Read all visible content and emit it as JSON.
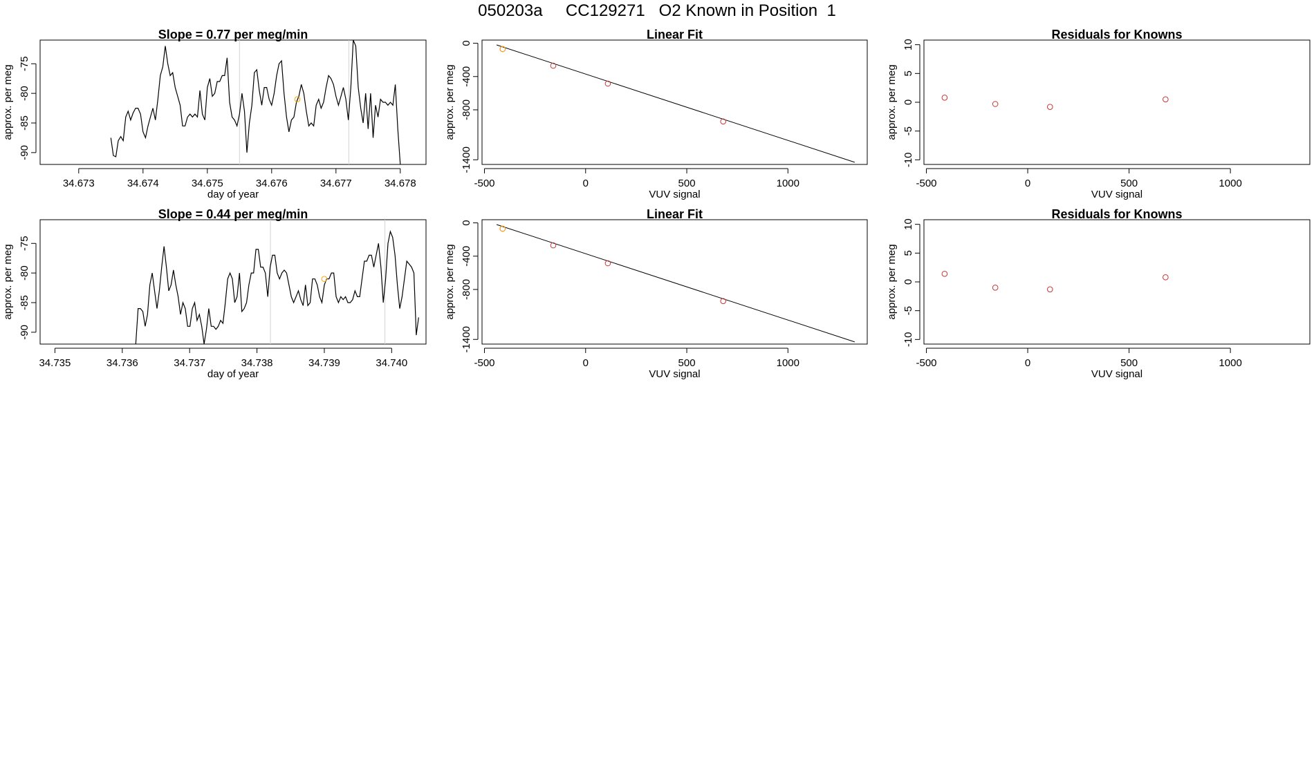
{
  "page": {
    "title": "050203a     CC129271   O2 Known in Position  1"
  },
  "colors": {
    "line": "#000000",
    "points": "#cd3333",
    "highlight": "#ffa500",
    "vlines": "#d3d3d3"
  },
  "chart_data": [
    {
      "type": "line",
      "title": "Slope =  0.77  per meg/min",
      "xlabel": "day of year",
      "ylabel": "approx. per meg",
      "xlim": [
        34.6724,
        34.6784
      ],
      "ylim": [
        -92,
        -71
      ],
      "xticks": [
        34.673,
        34.674,
        34.675,
        34.676,
        34.677,
        34.678
      ],
      "xtick_labels": [
        "34.673",
        "34.674",
        "34.675",
        "34.676",
        "34.677",
        "34.678"
      ],
      "yticks": [
        -90,
        -85,
        -80,
        -75
      ],
      "ytick_labels": [
        "-90",
        "-85",
        "-80",
        "-75"
      ],
      "vlines": [
        34.6755,
        34.6772
      ],
      "highlight_point": {
        "x": 34.6764,
        "y": -81
      },
      "x_start": 34.6735,
      "x_end": 34.678,
      "y": [
        -87.5,
        -90.5,
        -90.7,
        -88,
        -87.3,
        -88,
        -84,
        -83,
        -84.5,
        -83.3,
        -82.5,
        -82.5,
        -83.5,
        -86.5,
        -87.5,
        -85.5,
        -84,
        -82.5,
        -84.5,
        -81,
        -77,
        -75.5,
        -72,
        -75,
        -77,
        -76.5,
        -79,
        -80.5,
        -82,
        -85.5,
        -85.5,
        -84,
        -83.5,
        -84,
        -83.5,
        -84,
        -79.5,
        -83.5,
        -84.5,
        -79,
        -77.5,
        -80.5,
        -80,
        -78,
        -78,
        -77,
        -77,
        -74,
        -81.5,
        -84,
        -84.5,
        -85.5,
        -83.5,
        -80,
        -83,
        -90,
        -85,
        -82,
        -76.5,
        -76,
        -79.5,
        -82,
        -79,
        -79,
        -81,
        -82,
        -80,
        -77,
        -75,
        -74.5,
        -80,
        -84,
        -86.5,
        -84.5,
        -84,
        -81.5,
        -80.5,
        -78.5,
        -80,
        -83,
        -85.5,
        -85,
        -85.5,
        -82,
        -81,
        -82.5,
        -81.5,
        -79,
        -77,
        -77.5,
        -78.5,
        -80.5,
        -82,
        -80.5,
        -79,
        -81,
        -84.5,
        -79,
        -71,
        -72,
        -79,
        -82.5,
        -85,
        -80,
        -86,
        -80,
        -87.5,
        -82,
        -84,
        -81,
        -81.5,
        -81.5,
        -82,
        -81.5,
        -82,
        -78.5,
        -86,
        -92
      ]
    },
    {
      "type": "scatter",
      "title": "Linear Fit",
      "xlabel": "VUV signal",
      "ylabel": "approx. per meg",
      "xlim": [
        -512,
        1392
      ],
      "ylim": [
        -1456,
        38
      ],
      "xticks": [
        -500,
        0,
        500,
        1000
      ],
      "xtick_labels": [
        "-500",
        "0",
        "500",
        "1000"
      ],
      "yticks": [
        0,
        -400,
        -800,
        -1400
      ],
      "ytick_labels": [
        "0",
        "-400",
        "-800",
        "-1400"
      ],
      "fit_line": {
        "x": [
          -440,
          1330
        ],
        "y": [
          -20,
          -1430
        ]
      },
      "points": [
        {
          "x": -410,
          "y": -70,
          "highlight": true
        },
        {
          "x": -160,
          "y": -270,
          "highlight": false
        },
        {
          "x": 110,
          "y": -485,
          "highlight": false
        },
        {
          "x": 680,
          "y": -940,
          "highlight": false
        }
      ]
    },
    {
      "type": "scatter",
      "title": "Residuals for Knowns",
      "xlabel": "VUV signal",
      "ylabel": "approx. per meg",
      "xlim": [
        -512,
        1392
      ],
      "ylim": [
        -10.8,
        10.8
      ],
      "xticks": [
        -500,
        0,
        500,
        1000
      ],
      "xtick_labels": [
        "-500",
        "0",
        "500",
        "1000"
      ],
      "yticks": [
        -10,
        -5,
        0,
        5,
        10
      ],
      "ytick_labels": [
        "-10",
        "-5",
        "0",
        "5",
        "10"
      ],
      "points": [
        {
          "x": -410,
          "y": 0.8
        },
        {
          "x": -160,
          "y": -0.3
        },
        {
          "x": 110,
          "y": -0.8
        },
        {
          "x": 680,
          "y": 0.5
        }
      ]
    },
    {
      "type": "line",
      "title": "Slope =  0.44  per meg/min",
      "xlabel": "day of year",
      "ylabel": "approx. per meg",
      "xlim": [
        34.73478,
        34.74051
      ],
      "ylim": [
        -92,
        -71
      ],
      "xticks": [
        34.735,
        34.736,
        34.737,
        34.738,
        34.739,
        34.74
      ],
      "xtick_labels": [
        "34.735",
        "34.736",
        "34.737",
        "34.738",
        "34.739",
        "34.740"
      ],
      "yticks": [
        -90,
        -85,
        -80,
        -75
      ],
      "ytick_labels": [
        "-90",
        "-85",
        "-80",
        "-75"
      ],
      "vlines": [
        34.7382,
        34.7399
      ],
      "highlight_point": {
        "x": 34.739,
        "y": -81
      },
      "x_start": 34.7362,
      "x_end": 34.7404,
      "y": [
        -92,
        -86,
        -86,
        -86.5,
        -89,
        -87,
        -82,
        -80,
        -83,
        -86,
        -83,
        -79,
        -75.5,
        -79,
        -83,
        -82,
        -79.5,
        -82,
        -84,
        -87,
        -85,
        -86,
        -89,
        -89,
        -86,
        -85,
        -88,
        -87,
        -89,
        -92,
        -89.5,
        -86,
        -89,
        -89,
        -89.5,
        -89,
        -88,
        -88.5,
        -85,
        -81,
        -80,
        -81,
        -85,
        -84,
        -80,
        -86.5,
        -86,
        -85,
        -82,
        -80,
        -80,
        -76,
        -76,
        -79,
        -79,
        -80,
        -84,
        -79,
        -77,
        -77,
        -80,
        -81,
        -80,
        -79.5,
        -80,
        -82,
        -84,
        -85,
        -84,
        -83,
        -84.5,
        -85.5,
        -82,
        -85.5,
        -85,
        -81,
        -81,
        -82,
        -84,
        -85,
        -82,
        -81,
        -81,
        -80,
        -80,
        -84,
        -85,
        -84,
        -84.5,
        -84,
        -85,
        -85,
        -84.5,
        -83,
        -84,
        -84,
        -81,
        -78,
        -78,
        -77,
        -77,
        -79,
        -77,
        -75,
        -79,
        -85,
        -81,
        -75,
        -73,
        -74,
        -77,
        -82,
        -86,
        -84,
        -81,
        -78,
        -78.5,
        -79,
        -80,
        -90.5,
        -87.5
      ]
    },
    {
      "type": "scatter",
      "title": "Linear Fit",
      "xlabel": "VUV signal",
      "ylabel": "approx. per meg",
      "xlim": [
        -512,
        1392
      ],
      "ylim": [
        -1456,
        38
      ],
      "xticks": [
        -500,
        0,
        500,
        1000
      ],
      "xtick_labels": [
        "-500",
        "0",
        "500",
        "1000"
      ],
      "yticks": [
        0,
        -400,
        -800,
        -1400
      ],
      "ytick_labels": [
        "0",
        "-400",
        "-800",
        "-1400"
      ],
      "fit_line": {
        "x": [
          -440,
          1330
        ],
        "y": [
          -20,
          -1430
        ]
      },
      "points": [
        {
          "x": -410,
          "y": -70,
          "highlight": true
        },
        {
          "x": -160,
          "y": -270,
          "highlight": false
        },
        {
          "x": 110,
          "y": -485,
          "highlight": false
        },
        {
          "x": 680,
          "y": -940,
          "highlight": false
        }
      ]
    },
    {
      "type": "scatter",
      "title": "Residuals for Knowns",
      "xlabel": "VUV signal",
      "ylabel": "approx. per meg",
      "xlim": [
        -512,
        1392
      ],
      "ylim": [
        -10.8,
        10.8
      ],
      "xticks": [
        -500,
        0,
        500,
        1000
      ],
      "xtick_labels": [
        "-500",
        "0",
        "500",
        "1000"
      ],
      "yticks": [
        -10,
        -5,
        0,
        5,
        10
      ],
      "ytick_labels": [
        "-10",
        "-5",
        "0",
        "5",
        "10"
      ],
      "points": [
        {
          "x": -410,
          "y": 1.4
        },
        {
          "x": -160,
          "y": -1.0
        },
        {
          "x": 110,
          "y": -1.3
        },
        {
          "x": 680,
          "y": 0.8
        }
      ]
    }
  ]
}
